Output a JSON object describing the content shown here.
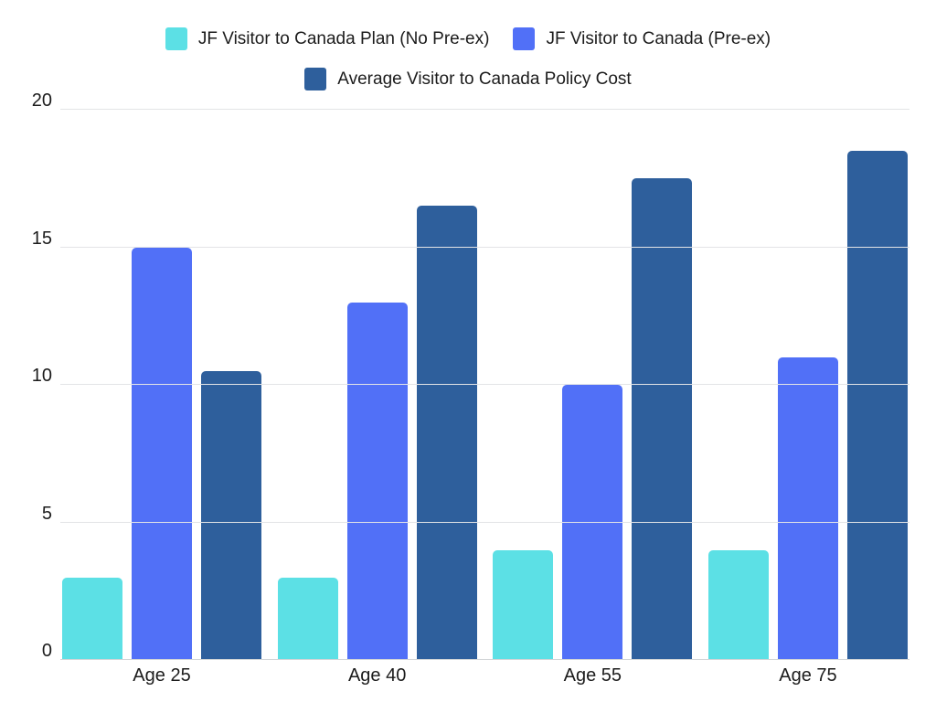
{
  "chart_data": {
    "type": "bar",
    "title": "",
    "xlabel": "",
    "ylabel": "",
    "categories": [
      "Age 25",
      "Age 40",
      "Age 55",
      "Age 75"
    ],
    "series": [
      {
        "name": "JF Visitor to Canada Plan (No Pre-ex)",
        "color": "#5CE0E5",
        "values": [
          3,
          3,
          4,
          4
        ]
      },
      {
        "name": "JF Visitor to Canada (Pre-ex)",
        "color": "#5170F7",
        "values": [
          15,
          13,
          10,
          11
        ]
      },
      {
        "name": "Average Visitor to Canada Policy Cost",
        "color": "#2E5F9C",
        "values": [
          10.5,
          16.5,
          17.5,
          18.5
        ]
      }
    ],
    "ylim": [
      0,
      20
    ],
    "yticks": [
      0,
      5,
      10,
      15,
      20
    ],
    "grid": true,
    "legend_position": "top",
    "colors": {
      "gridline": "#e3e4e6",
      "text": "#1c1c1c",
      "background": "#ffffff"
    }
  }
}
